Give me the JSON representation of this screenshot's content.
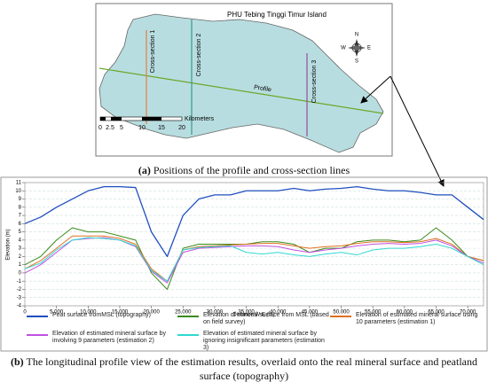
{
  "map": {
    "title": "PHU Tebing Tinggi Timur Island",
    "cross_sections": [
      "Cross-section 1",
      "Cross-section 2",
      "Cross-section 3"
    ],
    "profile_label": "Profile",
    "scale_labels": [
      "0",
      "2.5",
      "5",
      "10",
      "15",
      "20"
    ],
    "scale_unit": "Kilometers",
    "compass": [
      "N",
      "E",
      "S",
      "W"
    ]
  },
  "captions": [
    {
      "label": "(a)",
      "text": "Positions of the profile and cross-section lines"
    },
    {
      "label": "(b)",
      "text": "The longitudinal profile view of the estimation results, overlaid onto the real mineral surface and peatland surface (topography)"
    }
  ],
  "chart_data": {
    "type": "line",
    "x_label": "Distance W-E (m)",
    "y_label": "Elevation (m)",
    "x": [
      0,
      2500,
      5000,
      7500,
      10000,
      12500,
      15000,
      17500,
      20000,
      22500,
      25000,
      27500,
      30000,
      32500,
      35000,
      37500,
      40000,
      42500,
      45000,
      47500,
      50000,
      52500,
      55000,
      57500,
      60000,
      62500,
      65000,
      67500,
      70000,
      72500
    ],
    "series": [
      {
        "name": "Peat surface fromMSL (topography)",
        "color": "#1f4fbf",
        "values": [
          6,
          6.8,
          8,
          9,
          10,
          10.5,
          10.5,
          10.4,
          5,
          2,
          7,
          9,
          9.5,
          9.5,
          10,
          10,
          10,
          10.3,
          10,
          10.2,
          10.3,
          10.5,
          10.2,
          10,
          10,
          9.8,
          9.5,
          9.5,
          8,
          6.5
        ]
      },
      {
        "name": "Elevation of mineral surface from MSL (based on field survey)",
        "color": "#3a8a1a",
        "values": [
          1,
          2,
          4,
          5.5,
          5,
          5,
          4.5,
          4,
          0,
          -2,
          3,
          3.5,
          3.5,
          3.5,
          3.5,
          3.8,
          3.8,
          3.5,
          2.5,
          3,
          3,
          3.8,
          4,
          4,
          3.8,
          4,
          5.5,
          4,
          2,
          1.5
        ]
      },
      {
        "name": "Elevation of estimated mineral surface using 10 parameters (estimation 1)",
        "color": "#e07020",
        "values": [
          0.5,
          1.5,
          3,
          4.5,
          4.5,
          4.5,
          4.2,
          3.5,
          0.5,
          -1,
          2.8,
          3.2,
          3.3,
          3.4,
          3.5,
          3.6,
          3.6,
          3.3,
          3,
          3.2,
          3.3,
          3.6,
          3.8,
          3.8,
          3.7,
          3.8,
          4.2,
          3.5,
          2,
          1.5
        ]
      },
      {
        "name": "Elevation of estimated mineral surface by involving 9 parameters (estimation 2)",
        "color": "#c050e0",
        "values": [
          0,
          1,
          2.5,
          4,
          4.2,
          4.3,
          4,
          3.2,
          0.2,
          -1.2,
          2.5,
          3,
          3.1,
          3.2,
          3.3,
          3.3,
          3.2,
          2.8,
          2.5,
          2.8,
          3,
          3.3,
          3.5,
          3.6,
          3.5,
          3.6,
          4,
          3.3,
          2,
          1.2
        ]
      },
      {
        "name": "Elevation of estimated mineral surface by ignoring insignificant parameters (estimation 3)",
        "color": "#30d8d0",
        "values": [
          0.5,
          1.2,
          2.8,
          4,
          4.3,
          4.2,
          4,
          3.3,
          0.3,
          -1,
          2.8,
          3.1,
          3.2,
          3.3,
          2.5,
          2.3,
          2.5,
          2.2,
          2,
          2.3,
          2.5,
          2.2,
          2.8,
          3,
          3,
          3.2,
          3.5,
          3,
          2,
          1
        ]
      }
    ],
    "xlim": [
      0,
      72500
    ],
    "xticks": [
      0,
      {
        "value": 5000,
        "label": "5,000"
      },
      {
        "value": 10000,
        "label": "10,000"
      },
      {
        "value": 15000,
        "label": "15,000"
      },
      {
        "value": 20000,
        "label": "20,000"
      },
      {
        "value": 25000,
        "label": "25,000"
      },
      {
        "value": 30000,
        "label": "30,000"
      },
      {
        "value": 35000,
        "label": "35,000"
      },
      {
        "value": 40000,
        "label": "40,000"
      },
      {
        "value": 45000,
        "label": "45,000"
      },
      {
        "value": 50000,
        "label": "50,000"
      },
      {
        "value": 55000,
        "label": "55,000"
      },
      {
        "value": 60000,
        "label": "60,000"
      },
      {
        "value": 65000,
        "label": "65,000"
      },
      {
        "value": 70000,
        "label": "70,000"
      }
    ],
    "ylim": [
      -4,
      11
    ],
    "yticks": [
      -4,
      -3,
      -2,
      -1,
      0,
      1,
      2,
      3,
      4,
      5,
      6,
      7,
      8,
      9,
      10,
      11
    ],
    "grid": true
  }
}
